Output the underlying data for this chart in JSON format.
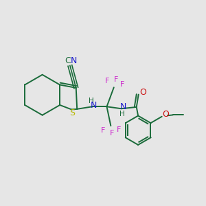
{
  "background_color": "#e6e6e6",
  "bond_color": "#1a6b3a",
  "sulfur_color": "#b8b800",
  "nitrogen_color": "#1a1acc",
  "fluorine_color": "#cc22cc",
  "oxygen_color": "#cc1111",
  "figsize": [
    3.0,
    3.0
  ],
  "dpi": 100,
  "xlim": [
    0,
    10
  ],
  "ylim": [
    0,
    10
  ]
}
